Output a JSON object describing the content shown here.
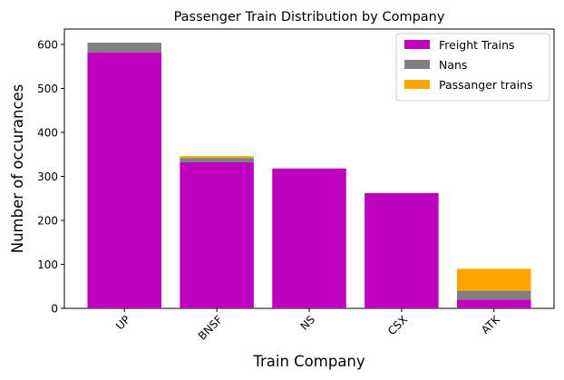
{
  "chart_data": {
    "type": "bar",
    "stacked": true,
    "title": "Passenger Train Distribution by Company",
    "xlabel": "Train Company",
    "ylabel": "Number of occurances",
    "categories": [
      "UP",
      "BNSF",
      "NS",
      "CSX",
      "ATK"
    ],
    "ylim": [
      0,
      635
    ],
    "yticks": [
      0,
      100,
      200,
      300,
      400,
      500,
      600
    ],
    "grid": false,
    "legend_position": "top-right",
    "series": [
      {
        "name": "Freight Trains",
        "color": "#bf00bf",
        "values": [
          582,
          332,
          318,
          262,
          20
        ]
      },
      {
        "name": "Nans",
        "color": "#808080",
        "values": [
          22,
          10,
          0,
          0,
          20
        ]
      },
      {
        "name": "Passanger trains",
        "color": "#ffa500",
        "values": [
          0,
          4,
          0,
          0,
          50
        ]
      }
    ]
  }
}
